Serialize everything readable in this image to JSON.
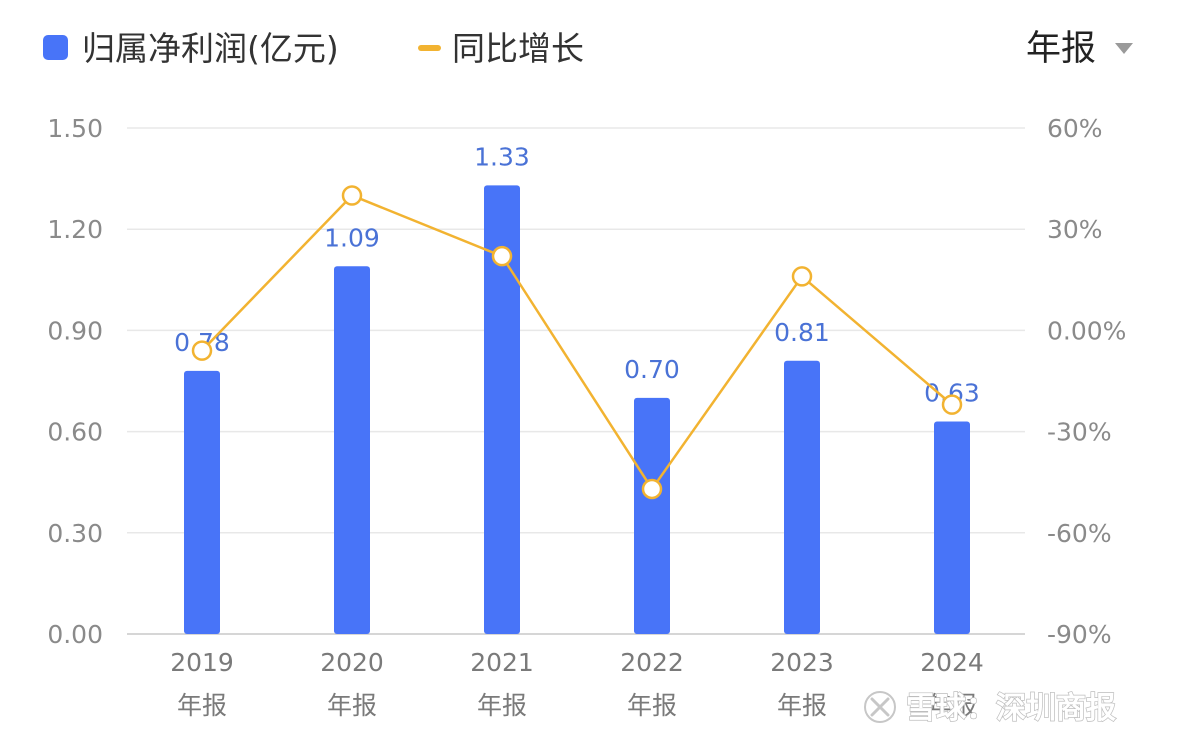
{
  "legend": {
    "bar_label": "归属净利润(亿元)",
    "line_label": "同比增长"
  },
  "period_selector": {
    "label": "年报",
    "icon": "caret-down-icon"
  },
  "watermark": {
    "text": "雪球：深圳商报",
    "icon": "snowball-logo-icon"
  },
  "colors": {
    "bar": "#4874f8",
    "line": "#f2b331",
    "bar_label": "#4a72d6",
    "grid": "#e8e8e8",
    "axis_text": "#8a8a8a"
  },
  "chart_data": {
    "type": "bar",
    "categories": [
      [
        "2019",
        "年报"
      ],
      [
        "2020",
        "年报"
      ],
      [
        "2021",
        "年报"
      ],
      [
        "2022",
        "年报"
      ],
      [
        "2023",
        "年报"
      ],
      [
        "2024",
        "年报"
      ]
    ],
    "series": [
      {
        "name": "归属净利润(亿元)",
        "type": "bar",
        "axis": "left",
        "values": [
          0.78,
          1.09,
          1.33,
          0.7,
          0.81,
          0.63
        ],
        "labels": [
          "0.78",
          "1.09",
          "1.33",
          "0.70",
          "0.81",
          "0.63"
        ]
      },
      {
        "name": "同比增长",
        "type": "line",
        "axis": "right",
        "values": [
          -6,
          40,
          22,
          -47,
          16,
          -22
        ]
      }
    ],
    "y_left": {
      "ylim": [
        0,
        1.5
      ],
      "ticks": [
        "0.00",
        "0.30",
        "0.60",
        "0.90",
        "1.20",
        "1.50"
      ]
    },
    "y_right": {
      "ylim": [
        -90,
        60
      ],
      "ticks": [
        "-90%",
        "-60%",
        "-30%",
        "0.00%",
        "30%",
        "60%"
      ]
    },
    "grid": true,
    "legend_position": "top-left"
  }
}
